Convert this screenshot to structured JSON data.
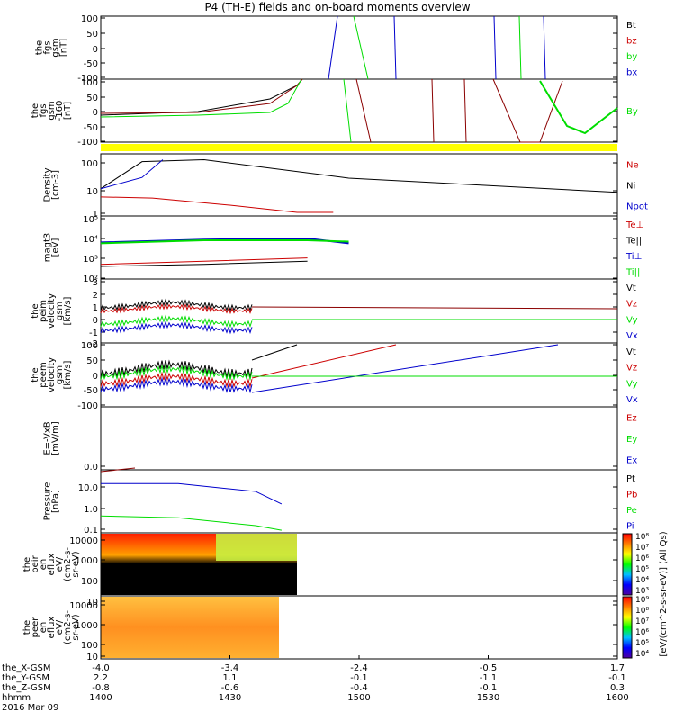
{
  "title": "P4 (TH-E) fields and on-board moments overview",
  "colors": {
    "black": "#000000",
    "red": "#cc0000",
    "green": "#00dd00",
    "blue": "#0000cc",
    "yellow": "#ffff00",
    "darkred": "#8b0000"
  },
  "chart_data": {
    "type": "line",
    "xlabel": "",
    "x_ticks": [
      {
        "hhmm": "1400",
        "x_gsm": "-4.0",
        "y_gsm": "2.2",
        "z_gsm": "-0.8"
      },
      {
        "hhmm": "1430",
        "x_gsm": "-3.4",
        "y_gsm": "1.1",
        "z_gsm": "-0.6"
      },
      {
        "hhmm": "1500",
        "x_gsm": "-2.4",
        "y_gsm": "-0.1",
        "z_gsm": "-0.4"
      },
      {
        "hhmm": "1530",
        "x_gsm": "-0.5",
        "y_gsm": "-1.1",
        "z_gsm": "-0.1"
      },
      {
        "hhmm": "1600",
        "x_gsm": "1.7",
        "y_gsm": "-0.1",
        "z_gsm": "0.3"
      }
    ],
    "x_rows": [
      "the_X-GSM",
      "the_Y-GSM",
      "the_Z-GSM",
      "hhmm",
      "2016 Mar 09"
    ],
    "panels": [
      {
        "ylabel": [
          "the",
          "fgs",
          "gsm",
          "[nT]"
        ],
        "ticks": [
          "100",
          "50",
          "0",
          "-50",
          "-100"
        ],
        "legend": [
          {
            "t": "Bt",
            "c": "black"
          },
          {
            "t": "bz",
            "c": "red"
          },
          {
            "t": "by",
            "c": "green"
          },
          {
            "t": "bx",
            "c": "blue"
          }
        ]
      },
      {
        "ylabel": [
          "the",
          "fgs",
          "gsm",
          "-160",
          "[nT]"
        ],
        "ticks": [
          "100",
          "50",
          "0",
          "-50",
          "-100"
        ],
        "legend": [
          {
            "t": "By",
            "c": "green"
          }
        ]
      },
      {
        "ylabel": [
          "Density",
          "[cm-3]"
        ],
        "ticks": [
          "100",
          "10",
          "1"
        ],
        "legend": [
          {
            "t": "Ne",
            "c": "red"
          },
          {
            "t": "Ni",
            "c": "black"
          },
          {
            "t": "Npot",
            "c": "blue"
          }
        ]
      },
      {
        "ylabel": [
          "magt3",
          "[eV]"
        ],
        "ticks": [
          "10⁵",
          "10⁴",
          "10³",
          "10²"
        ],
        "legend": [
          {
            "t": "Te⊥",
            "c": "red"
          },
          {
            "t": "Te||",
            "c": "black"
          },
          {
            "t": "Ti⊥",
            "c": "blue"
          },
          {
            "t": "Ti||",
            "c": "green"
          }
        ]
      },
      {
        "ylabel": [
          "the",
          "peim",
          "velocity",
          "gsm",
          "[km/s]"
        ],
        "ticks": [
          "3",
          "2",
          "1",
          "0",
          "-1",
          "-2"
        ],
        "legend": [
          {
            "t": "Vt",
            "c": "black"
          },
          {
            "t": "Vz",
            "c": "red"
          },
          {
            "t": "Vy",
            "c": "green"
          },
          {
            "t": "Vx",
            "c": "blue"
          }
        ]
      },
      {
        "ylabel": [
          "the",
          "peem",
          "velocity",
          "gsm",
          "[km/s]"
        ],
        "ticks": [
          "100",
          "50",
          "0",
          "-50",
          "-100"
        ],
        "legend": [
          {
            "t": "Vt",
            "c": "black"
          },
          {
            "t": "Vz",
            "c": "red"
          },
          {
            "t": "Vy",
            "c": "green"
          },
          {
            "t": "Vx",
            "c": "blue"
          }
        ]
      },
      {
        "ylabel": [
          "E=-VxB",
          "[mV/m]"
        ],
        "ticks": [
          "0.0"
        ],
        "legend": [
          {
            "t": "Ez",
            "c": "red"
          },
          {
            "t": "Ey",
            "c": "green"
          },
          {
            "t": "Ex",
            "c": "blue"
          }
        ]
      },
      {
        "ylabel": [
          "Pressure",
          "[nPa]"
        ],
        "ticks": [
          "10.0",
          "1.0",
          "0.1"
        ],
        "legend": [
          {
            "t": "Pt",
            "c": "black"
          },
          {
            "t": "Pb",
            "c": "red"
          },
          {
            "t": "Pe",
            "c": "green"
          },
          {
            "t": "Pi",
            "c": "blue"
          }
        ]
      },
      {
        "ylabel": [
          "the",
          "peir",
          "en",
          "eflux",
          "eV/",
          "(cm2-s-",
          "sr-eV)"
        ],
        "ticks": [
          "10000",
          "1000",
          "100",
          "10"
        ],
        "legend": []
      },
      {
        "ylabel": [
          "the",
          "peer",
          "en",
          "eflux",
          "eV/",
          "(cm2-s-",
          "sr-eV)"
        ],
        "ticks": [
          "10000",
          "1000",
          "100",
          "10"
        ],
        "legend": []
      }
    ],
    "colorbar1": {
      "ticks": [
        "10⁸",
        "10⁷",
        "10⁶",
        "10⁵",
        "10⁴",
        "10³"
      ]
    },
    "colorbar2": {
      "ticks": [
        "10⁹",
        "10⁸",
        "10⁷",
        "10⁶",
        "10⁵",
        "10⁴"
      ]
    },
    "colorbar_label": "[eV/(cm^2-s-sr-eV)] (All Qs)",
    "series": {
      "p3_density_ni": [
        [
          0,
          10
        ],
        [
          8,
          140
        ],
        [
          20,
          170
        ],
        [
          48,
          28
        ],
        [
          100,
          7
        ]
      ],
      "p3_density_ne": [
        [
          0,
          4.5
        ],
        [
          10,
          4
        ],
        [
          25,
          2
        ],
        [
          38,
          1
        ],
        [
          45,
          1
        ]
      ],
      "p3_density_npot": [
        [
          0,
          10
        ],
        [
          8,
          30
        ],
        [
          12,
          170
        ]
      ],
      "p4_ti_par": [
        [
          0,
          5000
        ],
        [
          20,
          7000
        ],
        [
          40,
          7000
        ],
        [
          48,
          6000
        ]
      ],
      "p4_ti_perp": [
        [
          0,
          5500
        ],
        [
          20,
          7500
        ],
        [
          40,
          8500
        ],
        [
          48,
          5000
        ]
      ],
      "p4_te_perp": [
        [
          0,
          500
        ],
        [
          20,
          700
        ],
        [
          40,
          1000
        ]
      ],
      "p4_te_par": [
        [
          0,
          400
        ],
        [
          20,
          500
        ],
        [
          40,
          700
        ]
      ],
      "p8_pi": [
        [
          0,
          6
        ],
        [
          15,
          6
        ],
        [
          30,
          3
        ],
        [
          35,
          1
        ]
      ],
      "p8_pe": [
        [
          0,
          0.35
        ],
        [
          15,
          0.3
        ],
        [
          30,
          0.15
        ],
        [
          35,
          0.1
        ]
      ]
    }
  }
}
